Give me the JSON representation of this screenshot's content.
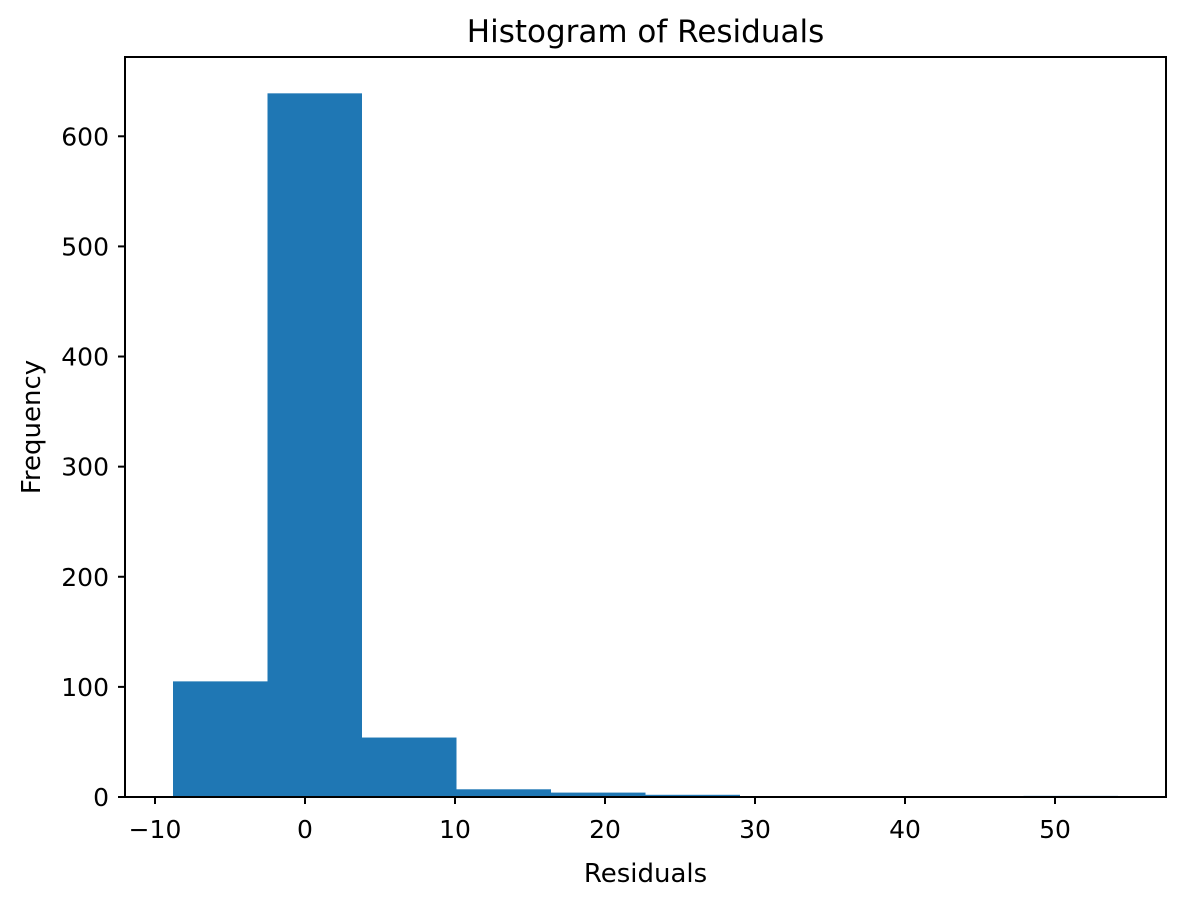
{
  "figure": {
    "background_color": "#ffffff",
    "text_color": "#000000",
    "spine_color": "#000000"
  },
  "chart_data": {
    "type": "bar",
    "subtype": "histogram",
    "title": "Histogram of Residuals",
    "xlabel": "Residuals",
    "ylabel": "Frequency",
    "bin_edges": [
      -8.8,
      -2.5,
      3.8,
      10.1,
      16.4,
      22.7,
      29.0,
      35.3,
      41.6,
      47.9,
      54.2
    ],
    "counts": [
      105,
      639,
      54,
      7,
      4,
      2,
      0,
      0,
      0,
      1
    ],
    "bar_color": "#1f77b4",
    "xlim": [
      -12.0,
      57.4
    ],
    "ylim": [
      0,
      672
    ],
    "xticks": {
      "values": [
        -10,
        0,
        10,
        20,
        30,
        40,
        50
      ],
      "labels": [
        "−10",
        "0",
        "10",
        "20",
        "30",
        "40",
        "50"
      ]
    },
    "yticks": {
      "values": [
        0,
        100,
        200,
        300,
        400,
        500,
        600
      ],
      "labels": [
        "0",
        "100",
        "200",
        "300",
        "400",
        "500",
        "600"
      ]
    },
    "grid": false,
    "legend": null
  }
}
